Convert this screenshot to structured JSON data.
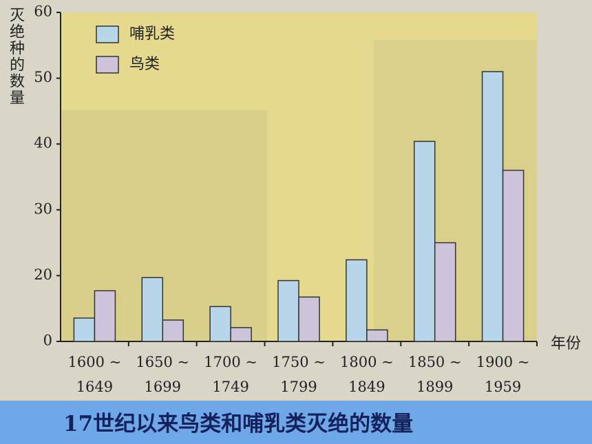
{
  "chart_data": {
    "type": "bar",
    "title": "17世纪以来鸟类和哺乳类灭绝的数量",
    "y_label": "灭绝种的数量",
    "x_label": "年份",
    "categories": [
      "1600 ~ 1649",
      "1650 ~ 1699",
      "1700 ~ 1749",
      "1750 ~ 1799",
      "1800 ~ 1849",
      "1850 ~ 1899",
      "1900 ~ 1959"
    ],
    "series": [
      {
        "name": "哺乳类",
        "color": "#b8d6ea",
        "values": [
          7.1,
          19.4,
          10.6,
          18.5,
          22.4,
          40.4,
          51
        ]
      },
      {
        "name": "鸟类",
        "color": "#cdc3da",
        "values": [
          15.4,
          6.5,
          4.2,
          13.5,
          3.5,
          25,
          36
        ]
      }
    ],
    "ylim": [
      0,
      60
    ],
    "yticks": [
      0,
      20,
      30,
      40,
      50,
      60
    ],
    "legend": "upper-left"
  }
}
